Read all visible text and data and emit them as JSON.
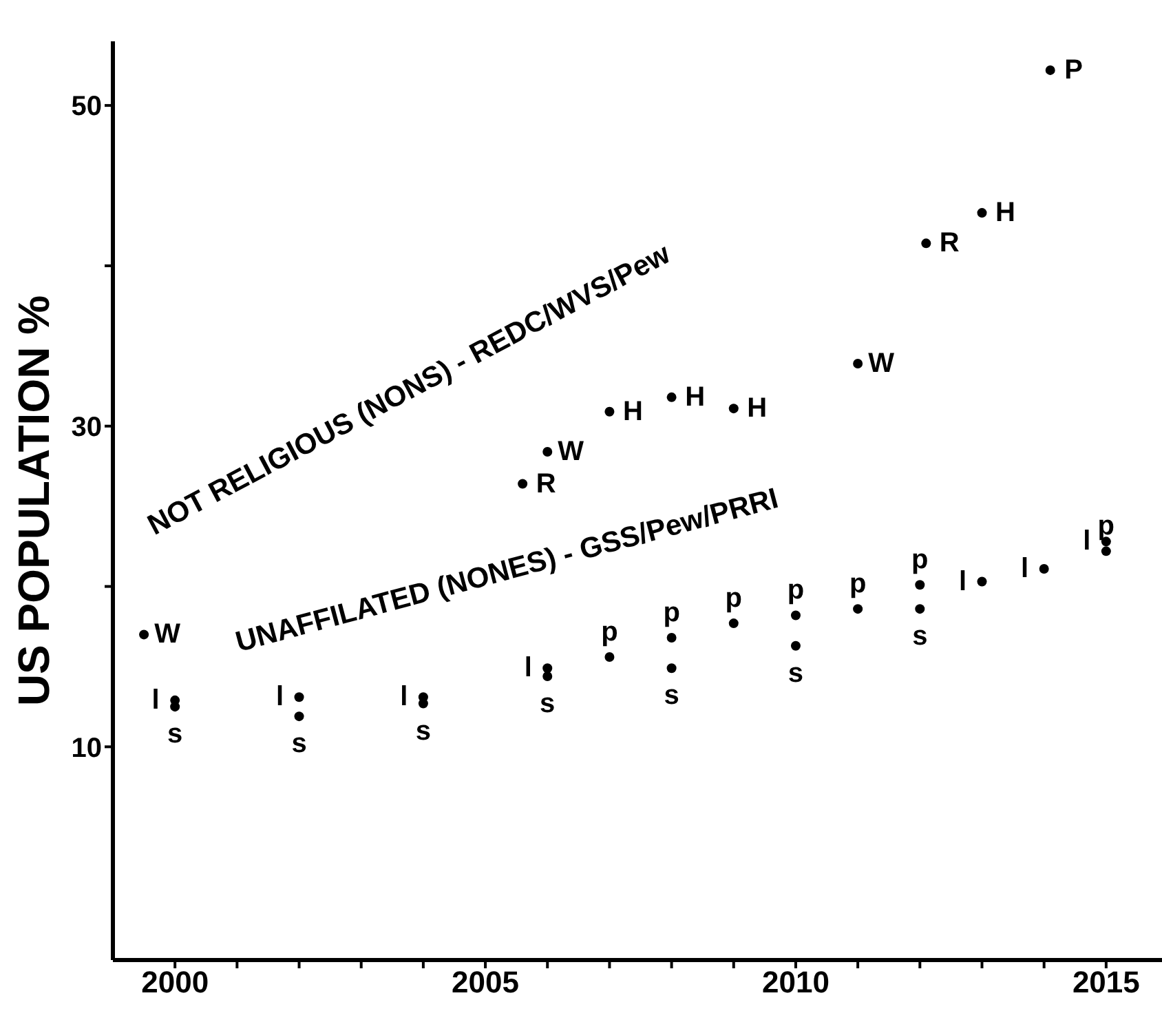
{
  "chart_data": {
    "type": "scatter",
    "ylabel": "US POPULATION %",
    "annotations": [
      "NOT RELIGIOUS (NONS) - REDC/WVS/Pew",
      "UNAFFILATED (NONES) - GSS/Pew/PRRI"
    ],
    "xlim": [
      1999,
      2015.9
    ],
    "ylim": [
      -3.3,
      54
    ],
    "xticks": [
      2000,
      {
        "value": 2001,
        "label": null
      },
      {
        "value": 2002,
        "label": null
      },
      {
        "value": 2003,
        "label": null
      },
      {
        "value": 2004,
        "label": null
      },
      2005,
      {
        "value": 2006,
        "label": null
      },
      {
        "value": 2007,
        "label": null
      },
      {
        "value": 2008,
        "label": null
      },
      {
        "value": 2009,
        "label": null
      },
      2010,
      {
        "value": 2011,
        "label": null
      },
      {
        "value": 2012,
        "label": null
      },
      {
        "value": 2013,
        "label": null
      },
      {
        "value": 2014,
        "label": null
      },
      2015
    ],
    "yticks": [
      10,
      {
        "value": 20,
        "label": null
      },
      30,
      {
        "value": 40,
        "label": null
      },
      50
    ],
    "series": [
      {
        "name": "W",
        "color": "#000000",
        "x": [
          1999.5,
          2006,
          2011
        ],
        "values": [
          17.0,
          28.4,
          33.9
        ]
      },
      {
        "name": "R",
        "color": "#000000",
        "x": [
          2005.6,
          2012.1
        ],
        "values": [
          26.4,
          41.4
        ]
      },
      {
        "name": "H",
        "color": "#000000",
        "x": [
          2007,
          2008,
          2009,
          2013
        ],
        "values": [
          30.9,
          31.8,
          31.1,
          43.3
        ]
      },
      {
        "name": "P",
        "color": "#000000",
        "x": [
          2014.1
        ],
        "values": [
          52.2
        ]
      },
      {
        "name": "s",
        "color": "#000000",
        "x": [
          2000,
          2002,
          2004,
          2006,
          2008,
          2010,
          2012
        ],
        "values": [
          12.5,
          11.9,
          12.7,
          14.4,
          14.9,
          16.3,
          18.6
        ]
      },
      {
        "name": "l",
        "color": "#000000",
        "x": [
          2000,
          2002,
          2004,
          2006,
          2013,
          2014,
          2015
        ],
        "values": [
          12.9,
          13.1,
          13.1,
          14.9,
          20.3,
          21.1,
          22.8
        ]
      },
      {
        "name": "p",
        "color": "#000000",
        "x": [
          2007,
          2008,
          2009,
          2010,
          2011,
          2012,
          2015
        ],
        "values": [
          15.6,
          16.8,
          17.7,
          18.2,
          18.6,
          20.1,
          22.2
        ]
      }
    ]
  }
}
